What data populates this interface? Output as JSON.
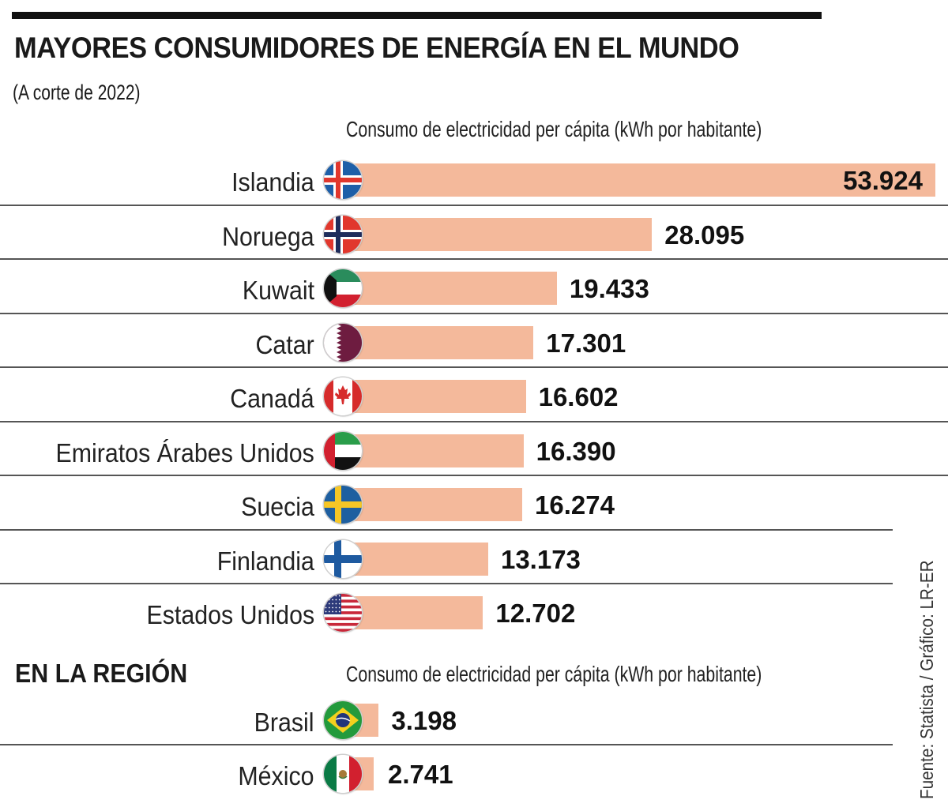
{
  "header": {
    "title": "MAYORES CONSUMIDORES DE ENERGÍA EN EL MUNDO",
    "subtitle": "(A corte de 2022)"
  },
  "source": "Fuente: Statista / Gráfico: LR-ER",
  "colors": {
    "bar": "#f4b99b",
    "text": "#111111",
    "rule": "#555555"
  },
  "chart_data": [
    {
      "type": "bar",
      "orientation": "horizontal",
      "title": "MAYORES CONSUMIDORES DE ENERGÍA EN EL MUNDO",
      "subtitle": "(A corte de 2022)",
      "xlabel": "Consumo de electricidad per cápita (kWh por habitante)",
      "ylabel": "",
      "categories": [
        "Islandia",
        "Noruega",
        "Kuwait",
        "Catar",
        "Canadá",
        "Emiratos Árabes Unidos",
        "Suecia",
        "Finlandia",
        "Estados Unidos"
      ],
      "values": [
        53924,
        28095,
        19433,
        17301,
        16602,
        16390,
        16274,
        13173,
        12702
      ],
      "value_labels": [
        "53.924",
        "28.095",
        "19.433",
        "17.301",
        "16.602",
        "16.390",
        "16.274",
        "13.173",
        "12.702"
      ],
      "flags": [
        "iceland-flag",
        "norway-flag",
        "kuwait-flag",
        "qatar-flag",
        "canada-flag",
        "uae-flag",
        "sweden-flag",
        "finland-flag",
        "usa-flag"
      ],
      "xlim": [
        0,
        53924
      ],
      "grid": false,
      "legend": "none"
    },
    {
      "type": "bar",
      "orientation": "horizontal",
      "title": "EN LA REGIÓN",
      "xlabel": "Consumo de electricidad per cápita (kWh por habitante)",
      "ylabel": "",
      "categories": [
        "Brasil",
        "México"
      ],
      "values": [
        3198,
        2741
      ],
      "value_labels": [
        "3.198",
        "2.741"
      ],
      "flags": [
        "brazil-flag",
        "mexico-flag"
      ],
      "xlim": [
        0,
        53924
      ],
      "grid": false,
      "legend": "none"
    }
  ]
}
